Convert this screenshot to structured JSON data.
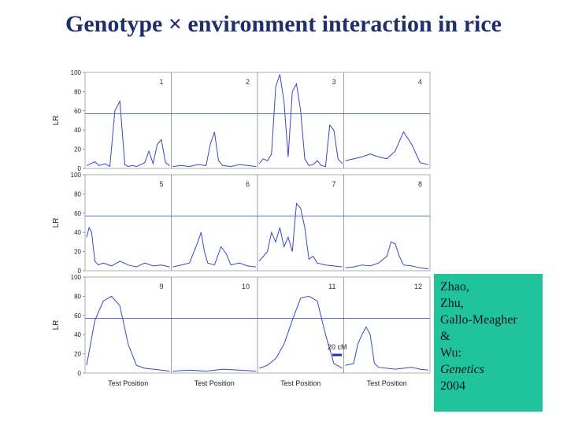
{
  "slide": {
    "title": "Genotype × environment interaction in rice"
  },
  "citation": {
    "lines": [
      "Zhao,",
      "Zhu,",
      "Gallo-Meagher",
      "&",
      "Wu:"
    ],
    "journal": "Genetics",
    "year": "2004"
  },
  "colors": {
    "trace": "#3a46c8",
    "threshold": "#4a5ae0",
    "citation_bg": "#21c49a",
    "title": "#1f2f6e"
  },
  "chart_data": {
    "type": "line",
    "ylabel": "LR",
    "xlabel": "Test Position",
    "ylim": [
      0,
      100
    ],
    "yticks": [
      "0",
      "20",
      "40",
      "60",
      "80",
      "100"
    ],
    "threshold": 57,
    "legend_scale": "20 cM",
    "grid": false,
    "rows": [
      {
        "panels": [
          {
            "label": "1",
            "x": [
              0,
              5,
              10,
              15,
              22,
              28,
              34,
              40,
              46,
              50,
              55,
              60,
              65,
              70,
              75,
              80,
              85,
              90,
              95,
              100
            ],
            "y": [
              3,
              5,
              7,
              3,
              5,
              2,
              60,
              70,
              4,
              2,
              3,
              2,
              4,
              6,
              18,
              5,
              25,
              30,
              6,
              3
            ]
          },
          {
            "label": "2",
            "x": [
              0,
              10,
              20,
              30,
              40,
              45,
              50,
              55,
              60,
              70,
              80,
              90,
              100
            ],
            "y": [
              2,
              3,
              2,
              4,
              3,
              25,
              38,
              8,
              3,
              2,
              4,
              3,
              2
            ]
          },
          {
            "label": "3",
            "x": [
              0,
              5,
              10,
              15,
              20,
              25,
              30,
              35,
              40,
              45,
              50,
              55,
              60,
              65,
              70,
              75,
              80,
              85,
              90,
              95,
              100
            ],
            "y": [
              5,
              10,
              8,
              15,
              85,
              98,
              70,
              12,
              80,
              88,
              60,
              10,
              3,
              4,
              8,
              3,
              2,
              45,
              40,
              10,
              5
            ]
          },
          {
            "label": "4",
            "x": [
              0,
              10,
              20,
              30,
              40,
              50,
              60,
              70,
              80,
              90,
              100
            ],
            "y": [
              8,
              10,
              12,
              15,
              12,
              10,
              18,
              38,
              25,
              6,
              4
            ]
          }
        ]
      },
      {
        "panels": [
          {
            "label": "5",
            "x": [
              0,
              3,
              6,
              10,
              14,
              20,
              30,
              40,
              50,
              60,
              70,
              80,
              90,
              100
            ],
            "y": [
              35,
              45,
              40,
              10,
              6,
              8,
              5,
              10,
              6,
              4,
              8,
              5,
              6,
              4
            ]
          },
          {
            "label": "6",
            "x": [
              0,
              10,
              20,
              30,
              34,
              38,
              42,
              50,
              58,
              64,
              70,
              80,
              90,
              100
            ],
            "y": [
              4,
              6,
              8,
              30,
              40,
              20,
              8,
              6,
              25,
              18,
              6,
              8,
              5,
              4
            ]
          },
          {
            "label": "7",
            "x": [
              0,
              10,
              15,
              20,
              25,
              30,
              35,
              40,
              45,
              50,
              55,
              60,
              65,
              70,
              80,
              90,
              100
            ],
            "y": [
              10,
              20,
              40,
              30,
              45,
              25,
              35,
              20,
              70,
              65,
              45,
              12,
              15,
              8,
              6,
              5,
              4
            ]
          },
          {
            "label": "8",
            "x": [
              0,
              10,
              20,
              30,
              40,
              50,
              55,
              60,
              65,
              70,
              80,
              90,
              100
            ],
            "y": [
              3,
              4,
              6,
              5,
              8,
              15,
              30,
              28,
              15,
              6,
              5,
              3,
              2
            ]
          }
        ]
      },
      {
        "panels": [
          {
            "label": "9",
            "x": [
              0,
              10,
              20,
              30,
              40,
              50,
              60,
              70,
              80,
              90,
              100
            ],
            "y": [
              8,
              55,
              75,
              80,
              70,
              30,
              8,
              5,
              4,
              3,
              2
            ]
          },
          {
            "label": "10",
            "x": [
              0,
              20,
              40,
              60,
              80,
              100
            ],
            "y": [
              2,
              3,
              2,
              4,
              3,
              2
            ]
          },
          {
            "label": "11",
            "x": [
              0,
              10,
              20,
              30,
              40,
              50,
              60,
              70,
              80,
              90,
              100
            ],
            "y": [
              5,
              8,
              15,
              30,
              55,
              78,
              80,
              75,
              40,
              10,
              5
            ]
          },
          {
            "label": "12",
            "x": [
              0,
              10,
              15,
              20,
              25,
              30,
              35,
              40,
              50,
              60,
              70,
              80,
              90,
              100
            ],
            "y": [
              8,
              10,
              30,
              40,
              48,
              40,
              10,
              6,
              5,
              4,
              5,
              6,
              4,
              3
            ]
          }
        ]
      }
    ]
  }
}
